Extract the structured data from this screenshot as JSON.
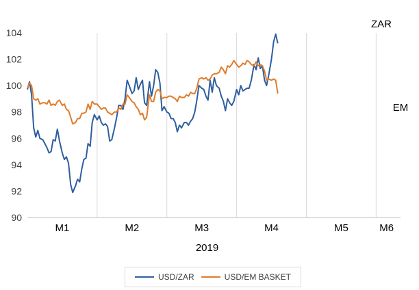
{
  "chart_data": {
    "type": "line",
    "xlabel": "2019",
    "ylim": [
      90,
      104
    ],
    "yticks": [
      90,
      92,
      94,
      96,
      98,
      100,
      102,
      104
    ],
    "xlim": [
      0,
      5.35
    ],
    "month_ticks": [
      {
        "label": "M1",
        "x": 0.5
      },
      {
        "label": "M2",
        "x": 1.5
      },
      {
        "label": "M3",
        "x": 2.5
      },
      {
        "label": "M4",
        "x": 3.5
      },
      {
        "label": "M5",
        "x": 4.5
      },
      {
        "label": "M6",
        "x": 5.15
      }
    ],
    "month_boundaries": [
      1,
      2,
      3,
      4,
      5
    ],
    "grid": "vertical",
    "legend_position": "bottom",
    "series": [
      {
        "name": "USD/ZAR",
        "end_label": "ZAR",
        "color": "#2e5e9e",
        "points": [
          [
            0.0,
            99.7
          ],
          [
            0.03,
            100.3
          ],
          [
            0.06,
            99.3
          ],
          [
            0.09,
            96.8
          ],
          [
            0.12,
            96.1
          ],
          [
            0.15,
            96.6
          ],
          [
            0.18,
            96.0
          ],
          [
            0.22,
            95.9
          ],
          [
            0.25,
            95.6
          ],
          [
            0.28,
            95.3
          ],
          [
            0.31,
            94.9
          ],
          [
            0.34,
            95.0
          ],
          [
            0.37,
            95.9
          ],
          [
            0.4,
            95.8
          ],
          [
            0.43,
            96.7
          ],
          [
            0.46,
            95.8
          ],
          [
            0.5,
            94.9
          ],
          [
            0.53,
            94.4
          ],
          [
            0.56,
            94.6
          ],
          [
            0.59,
            94.1
          ],
          [
            0.62,
            92.5
          ],
          [
            0.65,
            91.9
          ],
          [
            0.69,
            92.4
          ],
          [
            0.72,
            92.9
          ],
          [
            0.75,
            92.7
          ],
          [
            0.78,
            93.7
          ],
          [
            0.81,
            94.4
          ],
          [
            0.84,
            94.5
          ],
          [
            0.87,
            95.6
          ],
          [
            0.9,
            95.4
          ],
          [
            0.93,
            97.2
          ],
          [
            0.96,
            97.8
          ],
          [
            1.0,
            97.4
          ],
          [
            1.03,
            97.7
          ],
          [
            1.06,
            97.2
          ],
          [
            1.09,
            97.0
          ],
          [
            1.12,
            97.1
          ],
          [
            1.15,
            96.9
          ],
          [
            1.18,
            95.8
          ],
          [
            1.21,
            95.9
          ],
          [
            1.25,
            96.8
          ],
          [
            1.28,
            97.6
          ],
          [
            1.31,
            98.5
          ],
          [
            1.34,
            98.5
          ],
          [
            1.37,
            98.2
          ],
          [
            1.4,
            99.0
          ],
          [
            1.43,
            100.4
          ],
          [
            1.46,
            100.0
          ],
          [
            1.5,
            99.4
          ],
          [
            1.53,
            99.6
          ],
          [
            1.56,
            100.6
          ],
          [
            1.59,
            99.7
          ],
          [
            1.62,
            100.1
          ],
          [
            1.65,
            100.4
          ],
          [
            1.68,
            98.7
          ],
          [
            1.71,
            98.5
          ],
          [
            1.75,
            100.3
          ],
          [
            1.78,
            99.2
          ],
          [
            1.81,
            100.0
          ],
          [
            1.84,
            101.2
          ],
          [
            1.87,
            101.0
          ],
          [
            1.9,
            100.2
          ],
          [
            1.93,
            98.1
          ],
          [
            1.96,
            98.4
          ],
          [
            2.0,
            98.0
          ],
          [
            2.03,
            97.9
          ],
          [
            2.06,
            97.5
          ],
          [
            2.09,
            97.5
          ],
          [
            2.12,
            97.2
          ],
          [
            2.15,
            96.5
          ],
          [
            2.18,
            97.0
          ],
          [
            2.21,
            96.8
          ],
          [
            2.25,
            97.2
          ],
          [
            2.28,
            97.2
          ],
          [
            2.31,
            97.0
          ],
          [
            2.34,
            97.3
          ],
          [
            2.37,
            97.5
          ],
          [
            2.4,
            98.0
          ],
          [
            2.43,
            98.9
          ],
          [
            2.46,
            100.0
          ],
          [
            2.5,
            99.8
          ],
          [
            2.53,
            99.7
          ],
          [
            2.56,
            99.2
          ],
          [
            2.59,
            98.9
          ],
          [
            2.62,
            100.4
          ],
          [
            2.65,
            99.5
          ],
          [
            2.68,
            100.6
          ],
          [
            2.71,
            100.0
          ],
          [
            2.75,
            99.8
          ],
          [
            2.78,
            99.2
          ],
          [
            2.81,
            98.8
          ],
          [
            2.84,
            98.1
          ],
          [
            2.87,
            99.0
          ],
          [
            2.9,
            98.7
          ],
          [
            2.93,
            98.5
          ],
          [
            2.96,
            98.8
          ],
          [
            3.0,
            99.7
          ],
          [
            3.03,
            99.3
          ],
          [
            3.06,
            100.0
          ],
          [
            3.09,
            99.6
          ],
          [
            3.12,
            99.7
          ],
          [
            3.15,
            99.8
          ],
          [
            3.18,
            99.8
          ],
          [
            3.21,
            100.4
          ],
          [
            3.25,
            101.6
          ],
          [
            3.28,
            101.2
          ],
          [
            3.31,
            102.1
          ],
          [
            3.34,
            101.3
          ],
          [
            3.37,
            101.5
          ],
          [
            3.4,
            100.4
          ],
          [
            3.43,
            100.0
          ],
          [
            3.46,
            100.8
          ],
          [
            3.5,
            102.0
          ],
          [
            3.53,
            103.3
          ],
          [
            3.56,
            103.9
          ],
          [
            3.59,
            103.2
          ]
        ]
      },
      {
        "name": "USD/EM BASKET",
        "end_label": "EM",
        "color": "#e07b2a",
        "points": [
          [
            0.0,
            99.8
          ],
          [
            0.03,
            100.2
          ],
          [
            0.06,
            100.0
          ],
          [
            0.09,
            99.0
          ],
          [
            0.12,
            98.9
          ],
          [
            0.15,
            99.0
          ],
          [
            0.18,
            98.6
          ],
          [
            0.22,
            98.7
          ],
          [
            0.25,
            98.7
          ],
          [
            0.28,
            98.6
          ],
          [
            0.31,
            98.9
          ],
          [
            0.34,
            98.5
          ],
          [
            0.37,
            98.6
          ],
          [
            0.4,
            98.5
          ],
          [
            0.43,
            98.8
          ],
          [
            0.46,
            98.9
          ],
          [
            0.5,
            98.5
          ],
          [
            0.53,
            98.6
          ],
          [
            0.56,
            98.2
          ],
          [
            0.59,
            98.1
          ],
          [
            0.62,
            97.6
          ],
          [
            0.65,
            97.1
          ],
          [
            0.69,
            97.2
          ],
          [
            0.72,
            97.5
          ],
          [
            0.75,
            97.5
          ],
          [
            0.78,
            97.9
          ],
          [
            0.81,
            97.9
          ],
          [
            0.84,
            98.0
          ],
          [
            0.87,
            98.6
          ],
          [
            0.9,
            98.2
          ],
          [
            0.93,
            98.8
          ],
          [
            0.96,
            98.6
          ],
          [
            1.0,
            98.6
          ],
          [
            1.03,
            98.4
          ],
          [
            1.06,
            98.2
          ],
          [
            1.09,
            98.3
          ],
          [
            1.12,
            98.3
          ],
          [
            1.15,
            98.0
          ],
          [
            1.18,
            97.9
          ],
          [
            1.21,
            97.8
          ],
          [
            1.25,
            98.0
          ],
          [
            1.28,
            98.0
          ],
          [
            1.31,
            98.3
          ],
          [
            1.34,
            98.2
          ],
          [
            1.37,
            98.6
          ],
          [
            1.4,
            98.6
          ],
          [
            1.43,
            99.3
          ],
          [
            1.46,
            99.1
          ],
          [
            1.5,
            98.8
          ],
          [
            1.53,
            98.7
          ],
          [
            1.56,
            98.4
          ],
          [
            1.59,
            98.2
          ],
          [
            1.62,
            97.8
          ],
          [
            1.65,
            97.9
          ],
          [
            1.68,
            97.4
          ],
          [
            1.71,
            97.6
          ],
          [
            1.75,
            99.3
          ],
          [
            1.78,
            98.8
          ],
          [
            1.81,
            98.8
          ],
          [
            1.84,
            99.5
          ],
          [
            1.87,
            99.7
          ],
          [
            1.9,
            99.6
          ],
          [
            1.93,
            99.0
          ],
          [
            1.96,
            99.1
          ],
          [
            2.0,
            99.1
          ],
          [
            2.03,
            99.2
          ],
          [
            2.06,
            99.2
          ],
          [
            2.09,
            99.1
          ],
          [
            2.12,
            99.0
          ],
          [
            2.15,
            98.8
          ],
          [
            2.18,
            99.2
          ],
          [
            2.21,
            99.1
          ],
          [
            2.25,
            99.1
          ],
          [
            2.28,
            99.3
          ],
          [
            2.31,
            99.2
          ],
          [
            2.34,
            99.5
          ],
          [
            2.37,
            99.4
          ],
          [
            2.4,
            99.4
          ],
          [
            2.43,
            99.8
          ],
          [
            2.46,
            100.5
          ],
          [
            2.5,
            100.6
          ],
          [
            2.53,
            100.5
          ],
          [
            2.56,
            100.6
          ],
          [
            2.59,
            100.4
          ],
          [
            2.62,
            100.5
          ],
          [
            2.65,
            100.8
          ],
          [
            2.68,
            100.9
          ],
          [
            2.71,
            100.9
          ],
          [
            2.75,
            101.0
          ],
          [
            2.78,
            101.4
          ],
          [
            2.81,
            101.2
          ],
          [
            2.84,
            100.9
          ],
          [
            2.87,
            101.5
          ],
          [
            2.9,
            101.4
          ],
          [
            2.93,
            101.6
          ],
          [
            2.96,
            101.9
          ],
          [
            3.0,
            101.6
          ],
          [
            3.03,
            101.4
          ],
          [
            3.06,
            101.5
          ],
          [
            3.09,
            101.7
          ],
          [
            3.12,
            101.6
          ],
          [
            3.15,
            101.9
          ],
          [
            3.18,
            101.8
          ],
          [
            3.21,
            101.6
          ],
          [
            3.25,
            101.5
          ],
          [
            3.28,
            101.8
          ],
          [
            3.31,
            101.5
          ],
          [
            3.34,
            101.6
          ],
          [
            3.37,
            101.5
          ],
          [
            3.4,
            101.1
          ],
          [
            3.43,
            100.4
          ],
          [
            3.46,
            100.5
          ],
          [
            3.5,
            100.4
          ],
          [
            3.53,
            100.5
          ],
          [
            3.56,
            100.4
          ],
          [
            3.59,
            99.4
          ]
        ]
      }
    ]
  },
  "legend": {
    "items": [
      "USD/ZAR",
      "USD/EM BASKET"
    ]
  }
}
